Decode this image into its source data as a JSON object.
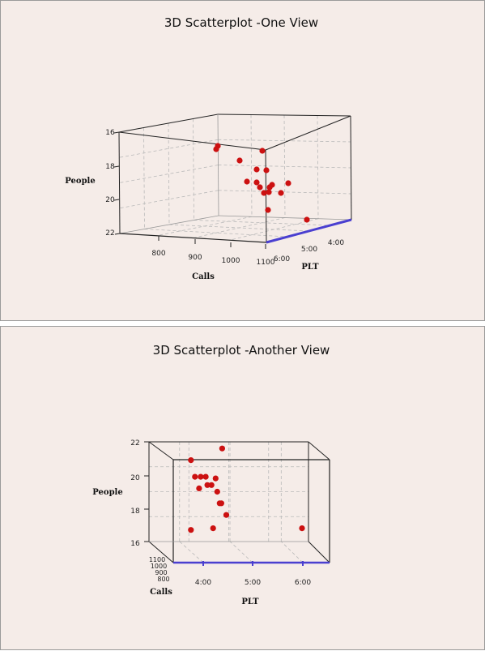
{
  "chart_data": [
    {
      "type": "scatter",
      "title": "3D Scatterplot -One View",
      "xlabel": "Calls",
      "ylabel": "PLT",
      "zlabel": "People",
      "x_ticks": [
        "800",
        "900",
        "1000",
        "1100"
      ],
      "y_ticks": [
        "6:00",
        "5:00",
        "4:00"
      ],
      "z_ticks": [
        "16",
        "18",
        "20",
        "22"
      ],
      "point_color": "#cc1111",
      "edge_color": "#4a3fd0"
    },
    {
      "type": "scatter",
      "title": "3D Scatterplot -Another View",
      "xlabel": "PLT",
      "ylabel": "Calls",
      "zlabel": "People",
      "x_ticks": [
        "4:00",
        "5:00",
        "6:00"
      ],
      "y_ticks": [
        "1100",
        "1000",
        "900",
        "800"
      ],
      "z_ticks": [
        "22",
        "20",
        "18",
        "16"
      ],
      "point_color": "#cc1111",
      "edge_color": "#4a3fd0",
      "points": [
        {
          "plt": "3:45",
          "people": 20.9
        },
        {
          "plt": "3:50",
          "people": 19.9
        },
        {
          "plt": "3:55",
          "people": 19.2
        },
        {
          "plt": "3:57",
          "people": 19.9
        },
        {
          "plt": "4:03",
          "people": 19.9
        },
        {
          "plt": "4:05",
          "people": 19.4
        },
        {
          "plt": "4:10",
          "people": 19.4
        },
        {
          "plt": "4:15",
          "people": 19.8
        },
        {
          "plt": "4:17",
          "people": 19.0
        },
        {
          "plt": "4:20",
          "people": 18.3
        },
        {
          "plt": "4:22",
          "people": 18.3
        },
        {
          "plt": "4:28",
          "people": 17.6
        },
        {
          "plt": "4:23",
          "people": 21.6
        },
        {
          "plt": "4:12",
          "people": 16.8
        },
        {
          "plt": "3:45",
          "people": 16.7
        },
        {
          "plt": "6:00",
          "people": 16.8
        }
      ]
    }
  ]
}
